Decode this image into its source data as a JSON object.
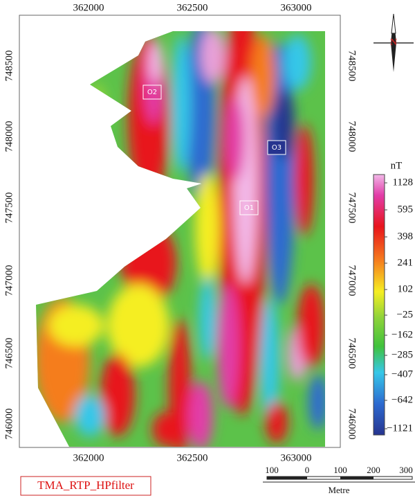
{
  "map": {
    "x_ticks": [
      362000,
      362500,
      363000
    ],
    "y_ticks": [
      748500,
      748000,
      747500,
      747000,
      746500,
      746000
    ],
    "anomalies": [
      "O1",
      "O2",
      "O3"
    ],
    "north": "N"
  },
  "colorbar": {
    "unit": "nT",
    "labels": [
      "1128",
      "595",
      "398",
      "241",
      "102",
      "−25",
      "−162",
      "−285",
      "−407",
      "−642",
      "−1121"
    ]
  },
  "scale_bar": {
    "labels": [
      "100",
      "0",
      "100",
      "200",
      "300"
    ],
    "unit": "Metre"
  },
  "layer_name": "TMA_RTP_HPfilter"
}
